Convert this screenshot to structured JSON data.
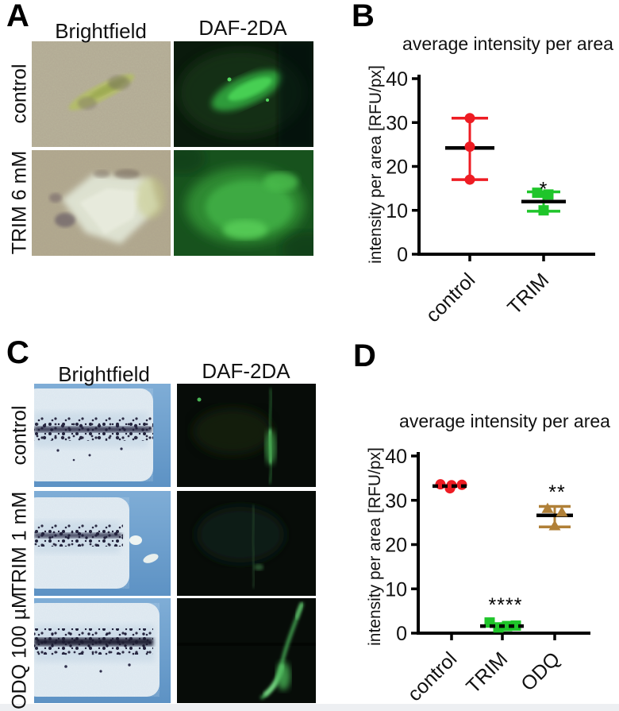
{
  "panels": {
    "A": {
      "label": "A",
      "col_headers": [
        "Brightfield",
        "DAF-2DA"
      ],
      "row_labels": [
        "control",
        "TRIM 6 mM"
      ]
    },
    "B": {
      "label": "B"
    },
    "C": {
      "label": "C",
      "col_headers": [
        "Brightfield",
        "DAF-2DA"
      ],
      "row_labels": [
        "control",
        "TRIM 1 mM",
        "ODQ 100 µM"
      ]
    },
    "D": {
      "label": "D"
    }
  },
  "colors": {
    "control_marker": "#ee1c23",
    "trim_marker": "#1fc52a",
    "odq_marker": "#b08038",
    "axis": "#000000"
  },
  "chart_data": [
    {
      "panel": "B",
      "type": "scatter",
      "title": "average intensity per area",
      "ylabel": "intensity per area [RFU/px]",
      "xlabel": "",
      "ylim": [
        0,
        40
      ],
      "yticks": [
        0,
        10,
        20,
        30,
        40
      ],
      "grid": false,
      "legend": "none",
      "categories": [
        "control",
        "TRIM"
      ],
      "series": [
        {
          "name": "control",
          "marker": "circle",
          "color": "#ee1c23",
          "points": [
            [
              0,
              31
            ],
            [
              0,
              24.5
            ],
            [
              0,
              17
            ]
          ],
          "mean": 24.2,
          "mean_style": "solid",
          "err": [
            17,
            31
          ],
          "annotation": "",
          "annotation_value": null,
          "annotation_dx": 0
        },
        {
          "name": "TRIM",
          "marker": "square",
          "color": "#1fc52a",
          "points": [
            [
              -8,
              14
            ],
            [
              6,
              13.6
            ],
            [
              0,
              10
            ]
          ],
          "mean": 12,
          "mean_style": "solid",
          "err": [
            9.8,
            14.2
          ],
          "annotation": "*",
          "annotation_value": 13.3,
          "annotation_dx": 0
        }
      ]
    },
    {
      "panel": "D",
      "type": "scatter",
      "title": "average intensity per area",
      "ylabel": "intensity per area [RFU/px]",
      "xlabel": "",
      "ylim": [
        0,
        40
      ],
      "yticks": [
        0,
        10,
        20,
        30,
        40
      ],
      "grid": false,
      "legend": "none",
      "categories": [
        "control",
        "TRIM",
        "ODQ"
      ],
      "series": [
        {
          "name": "control",
          "marker": "circle",
          "color": "#ee1c23",
          "points": [
            [
              -14,
              33.6
            ],
            [
              0,
              33.4
            ],
            [
              13,
              33.5
            ],
            [
              -2,
              32.7
            ]
          ],
          "mean": 33.2,
          "mean_style": "dashed",
          "err": null,
          "annotation": "",
          "annotation_value": null,
          "annotation_dx": 0
        },
        {
          "name": "TRIM",
          "marker": "square",
          "color": "#1fc52a",
          "points": [
            [
              -16,
              2.4
            ],
            [
              -5,
              1.3
            ],
            [
              6,
              1.6
            ],
            [
              17,
              1.7
            ]
          ],
          "mean": 1.6,
          "mean_style": "dashed",
          "err": null,
          "annotation": "****",
          "annotation_value": 4.8,
          "annotation_dx": 4
        },
        {
          "name": "ODQ",
          "marker": "triangle",
          "color": "#b08038",
          "points": [
            [
              -9,
              28.2
            ],
            [
              9,
              27.4
            ],
            [
              0,
              24.3
            ]
          ],
          "mean": 26.6,
          "mean_style": "solid",
          "err": [
            24.0,
            28.6
          ],
          "annotation": "**",
          "annotation_value": 30.3,
          "annotation_dx": 3
        }
      ]
    }
  ]
}
